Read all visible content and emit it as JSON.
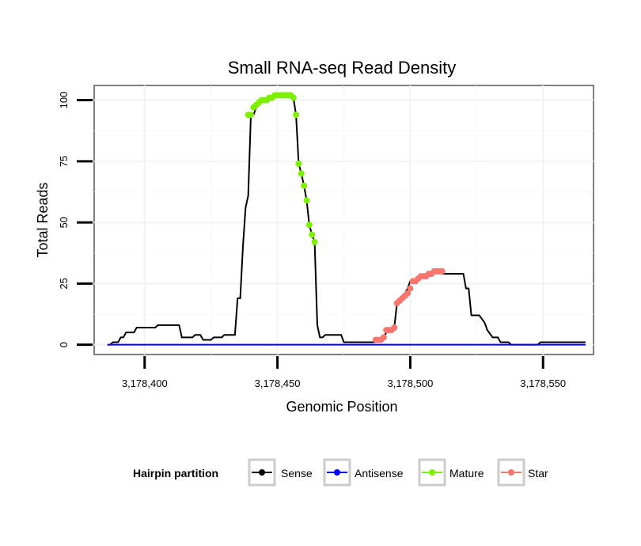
{
  "chart_data": {
    "type": "line",
    "title": "Small RNA-seq Read Density",
    "xlabel": "Genomic Position",
    "ylabel": "Total Reads",
    "xlim": [
      3178381,
      3178569
    ],
    "ylim": [
      -4,
      106
    ],
    "x_ticks": [
      3178400,
      3178450,
      3178500,
      3178550
    ],
    "x_tick_labels": [
      "3,178,400",
      "3,178,450",
      "3,178,500",
      "3,178,550"
    ],
    "y_ticks": [
      0,
      25,
      50,
      75,
      100
    ],
    "y_tick_labels": [
      "0",
      "25",
      "50",
      "75",
      "100"
    ],
    "grid": true,
    "legend": {
      "title": "Hairpin partition",
      "placement": "bottom",
      "entries": [
        "Sense",
        "Antisense",
        "Mature",
        "Star"
      ]
    },
    "series": [
      {
        "name": "Sense",
        "color": "#000000",
        "style": "line",
        "x": [
          3178386,
          3178387,
          3178388,
          3178390,
          3178391,
          3178392,
          3178393,
          3178396,
          3178397,
          3178404,
          3178405,
          3178413,
          3178414,
          3178418,
          3178419,
          3178421,
          3178422,
          3178425,
          3178426,
          3178429,
          3178430,
          3178434,
          3178435,
          3178436,
          3178437,
          3178438,
          3178439,
          3178440,
          3178441,
          3178442,
          3178444,
          3178446,
          3178448,
          3178450,
          3178452,
          3178455,
          3178456,
          3178457,
          3178458,
          3178459,
          3178460,
          3178461,
          3178462,
          3178463,
          3178464,
          3178465,
          3178466,
          3178467,
          3178468,
          3178470,
          3178471,
          3178474,
          3178475,
          3178487,
          3178488,
          3178489,
          3178490,
          3178491,
          3178492,
          3178493,
          3178494,
          3178495,
          3178496,
          3178497,
          3178498,
          3178499,
          3178500,
          3178501,
          3178502,
          3178503,
          3178504,
          3178505,
          3178506,
          3178507,
          3178508,
          3178509,
          3178510,
          3178511,
          3178512,
          3178513,
          3178514,
          3178515,
          3178517,
          3178519,
          3178520,
          3178521,
          3178522,
          3178523,
          3178524,
          3178526,
          3178528,
          3178529,
          3178531,
          3178532,
          3178533,
          3178534,
          3178536,
          3178537,
          3178538,
          3178540,
          3178545,
          3178546,
          3178548,
          3178549,
          3178550,
          3178560,
          3178566
        ],
        "values": [
          0,
          0,
          1,
          1,
          3,
          3,
          5,
          5,
          7,
          7,
          8,
          8,
          3,
          3,
          4,
          4,
          2,
          2,
          3,
          3,
          4,
          4,
          19,
          19,
          40,
          56,
          61,
          94,
          94,
          97,
          99,
          100,
          101,
          102,
          102,
          102,
          101,
          94,
          74,
          70,
          65,
          59,
          49,
          45,
          42,
          8,
          3,
          3,
          4,
          4,
          4,
          4,
          1,
          1,
          2,
          2,
          3,
          5,
          6,
          6,
          7,
          17,
          18,
          20,
          21,
          23,
          26,
          26,
          27,
          28,
          28,
          28,
          29,
          29,
          30,
          30,
          30,
          30,
          29,
          29,
          29,
          29,
          29,
          29,
          29,
          23,
          23,
          12,
          12,
          12,
          9,
          6,
          3,
          3,
          3,
          1,
          1,
          1,
          0,
          0,
          0,
          0,
          0,
          1,
          1,
          1,
          1
        ]
      },
      {
        "name": "Antisense",
        "color": "#0000ff",
        "style": "line",
        "x": [
          3178386,
          3178566
        ],
        "values": [
          0,
          0
        ]
      },
      {
        "name": "Mature",
        "color": "#7cf000",
        "style": "points",
        "x": [
          3178439,
          3178440,
          3178441,
          3178442,
          3178443,
          3178444,
          3178445,
          3178446,
          3178447,
          3178448,
          3178449,
          3178450,
          3178451,
          3178452,
          3178453,
          3178454,
          3178455,
          3178456,
          3178457,
          3178458,
          3178459,
          3178460,
          3178461,
          3178462,
          3178463,
          3178464
        ],
        "values": [
          94,
          94,
          97,
          98,
          99,
          100,
          100,
          100,
          101,
          101,
          102,
          102,
          102,
          102,
          102,
          102,
          102,
          101,
          94,
          74,
          70,
          65,
          59,
          49,
          45,
          42
        ]
      },
      {
        "name": "Star",
        "color": "#f8766d",
        "style": "points",
        "x": [
          3178487,
          3178488,
          3178489,
          3178490,
          3178491,
          3178492,
          3178493,
          3178494,
          3178495,
          3178496,
          3178497,
          3178498,
          3178499,
          3178500,
          3178501,
          3178502,
          3178503,
          3178504,
          3178505,
          3178506,
          3178507,
          3178508,
          3178509,
          3178510,
          3178511,
          3178512
        ],
        "values": [
          2,
          2,
          2,
          3,
          6,
          6,
          6,
          7,
          17,
          18,
          19,
          20,
          21,
          23,
          26,
          26,
          27,
          28,
          28,
          28,
          29,
          29,
          30,
          30,
          30,
          30
        ]
      }
    ]
  }
}
